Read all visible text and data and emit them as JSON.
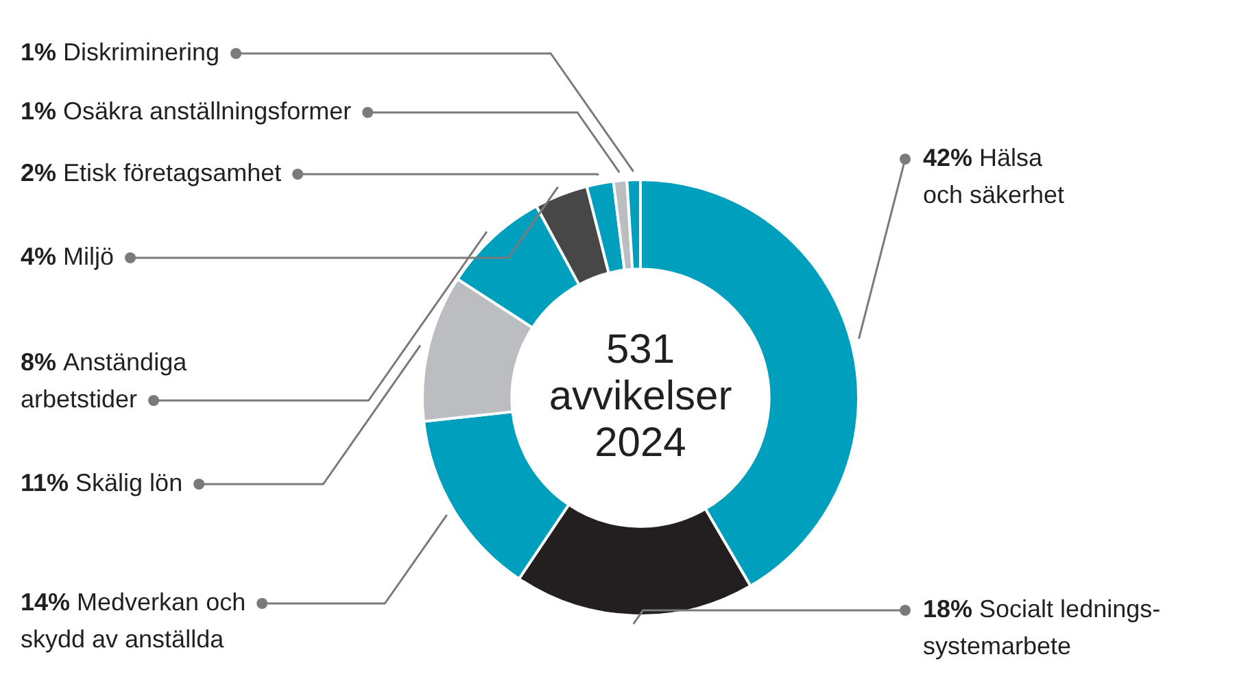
{
  "chart_data": {
    "type": "donut",
    "title": "531 avvikelser 2024",
    "categories": [
      "Hälsa och säkerhet",
      "Socialt lednings-systemarbete",
      "Medverkan och skydd av anställda",
      "Skälig lön",
      "Anständiga arbetstider",
      "Miljö",
      "Etisk företagsamhet",
      "Osäkra anställningsformer",
      "Diskriminering"
    ],
    "values": [
      42,
      18,
      14,
      11,
      8,
      4,
      2,
      1,
      1
    ],
    "value_labels": [
      "42%",
      "18%",
      "14%",
      "11%",
      "8%",
      "4%",
      "2%",
      "1%",
      "1%"
    ],
    "colors": [
      "#009fbd",
      "#231f20",
      "#009fbd",
      "#bcbdc0",
      "#009fbd",
      "#474747",
      "#009fbd",
      "#bcbdc0",
      "#009fbd"
    ]
  }
}
